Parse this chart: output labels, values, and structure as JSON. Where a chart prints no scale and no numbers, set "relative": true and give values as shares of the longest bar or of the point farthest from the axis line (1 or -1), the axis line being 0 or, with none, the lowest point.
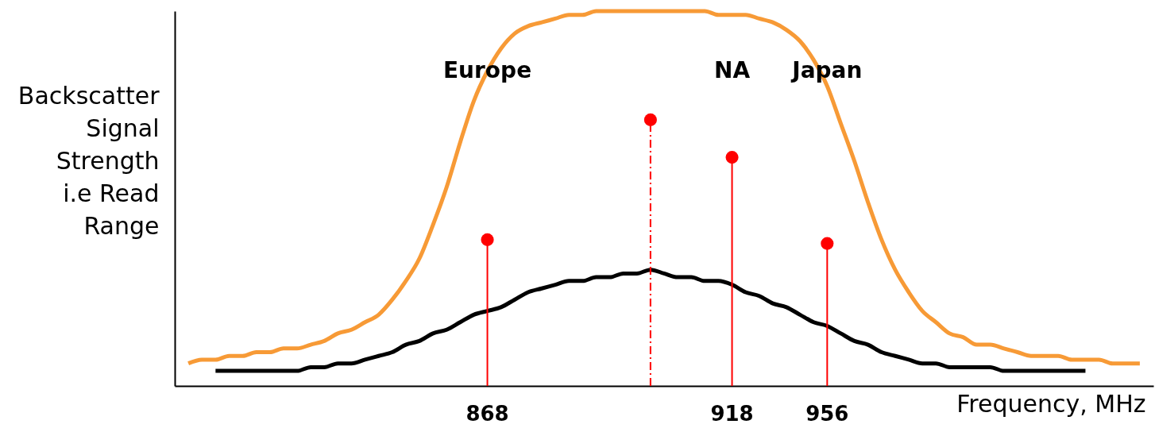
{
  "chart_data": {
    "type": "line",
    "relative": true,
    "xlabel": "Frequency, MHz",
    "ylabel": "Backscatter\nSignal\nStrength\ni.e Read\nRange",
    "categories": [
      null,
      null,
      null,
      null,
      null,
      null,
      null,
      null,
      null,
      null,
      null,
      null,
      null,
      null,
      null,
      null,
      null,
      null,
      null,
      null,
      null,
      null,
      "868",
      null,
      null,
      null,
      null,
      null,
      null,
      null,
      null,
      null,
      null,
      null,
      null,
      null,
      null,
      null,
      null,
      null,
      "918",
      null,
      null,
      null,
      null,
      null,
      null,
      "956",
      null,
      null,
      null,
      null,
      null,
      null,
      null,
      null,
      null,
      null,
      null,
      null,
      null,
      null,
      null,
      null,
      null,
      null,
      null,
      null,
      null,
      null,
      null
    ],
    "series": [
      {
        "color": "#f79a36",
        "line_style": "solid",
        "values": [
          0.06,
          0.07,
          0.07,
          0.08,
          0.08,
          0.09,
          0.09,
          0.1,
          0.1,
          0.11,
          0.12,
          0.14,
          0.15,
          0.17,
          0.19,
          0.23,
          0.28,
          0.34,
          0.43,
          0.53,
          0.65,
          0.76,
          0.84,
          0.9,
          0.94,
          0.96,
          0.97,
          0.98,
          0.99,
          0.99,
          1.0,
          1.0,
          1.0,
          1.0,
          1.0,
          1.0,
          1.0,
          1.0,
          1.0,
          0.99,
          0.99,
          0.99,
          0.98,
          0.97,
          0.95,
          0.92,
          0.87,
          0.8,
          0.7,
          0.6,
          0.49,
          0.39,
          0.31,
          0.25,
          0.2,
          0.17,
          0.14,
          0.13,
          0.11,
          0.11,
          0.1,
          0.09,
          0.08,
          0.08,
          0.08,
          0.07,
          0.07,
          0.07,
          0.06,
          0.06,
          0.06
        ]
      },
      {
        "color": "#000000",
        "line_style": "solid",
        "values": [
          null,
          null,
          0.04,
          0.04,
          0.04,
          0.04,
          0.04,
          0.04,
          0.04,
          0.05,
          0.05,
          0.06,
          0.06,
          0.07,
          0.08,
          0.09,
          0.11,
          0.12,
          0.14,
          0.15,
          0.17,
          0.19,
          0.2,
          0.21,
          0.23,
          0.25,
          0.26,
          0.27,
          0.28,
          0.28,
          0.29,
          0.29,
          0.3,
          0.3,
          0.31,
          0.3,
          0.29,
          0.29,
          0.28,
          0.28,
          0.27,
          0.25,
          0.24,
          0.22,
          0.21,
          0.19,
          0.17,
          0.16,
          0.14,
          0.12,
          0.11,
          0.09,
          0.08,
          0.07,
          0.06,
          0.06,
          0.05,
          0.05,
          0.05,
          0.05,
          0.04,
          0.04,
          0.04,
          0.04,
          0.04,
          0.04,
          0.04,
          null,
          null,
          null,
          null
        ]
      },
      {
        "type": "lollipop",
        "color": "#ff0000",
        "line_style": "solid",
        "values": [
          null,
          null,
          null,
          null,
          null,
          null,
          null,
          null,
          null,
          null,
          null,
          null,
          null,
          null,
          null,
          null,
          null,
          null,
          null,
          null,
          null,
          null,
          0.39,
          null,
          null,
          null,
          null,
          null,
          null,
          null,
          null,
          null,
          null,
          null,
          null,
          null,
          null,
          null,
          null,
          null,
          0.61,
          null,
          null,
          null,
          null,
          null,
          null,
          0.38,
          null,
          null,
          null,
          null,
          null,
          null,
          null,
          null,
          null,
          null,
          null,
          null,
          null,
          null,
          null,
          null,
          null,
          null,
          null,
          null,
          null,
          null,
          null
        ]
      },
      {
        "type": "lollipop",
        "color": "#ff0000",
        "line_style": "dashed",
        "values": [
          null,
          null,
          null,
          null,
          null,
          null,
          null,
          null,
          null,
          null,
          null,
          null,
          null,
          null,
          null,
          null,
          null,
          null,
          null,
          null,
          null,
          null,
          null,
          null,
          null,
          null,
          null,
          null,
          null,
          null,
          null,
          null,
          null,
          null,
          0.71,
          null,
          null,
          null,
          null,
          null,
          null,
          null,
          null,
          null,
          null,
          null,
          null,
          null,
          null,
          null,
          null,
          null,
          null,
          null,
          null,
          null,
          null,
          null,
          null,
          null,
          null,
          null,
          null,
          null,
          null,
          null,
          null,
          null,
          null,
          null,
          null
        ]
      }
    ],
    "annotations": [
      "Europe",
      "NA",
      "Japan"
    ]
  }
}
